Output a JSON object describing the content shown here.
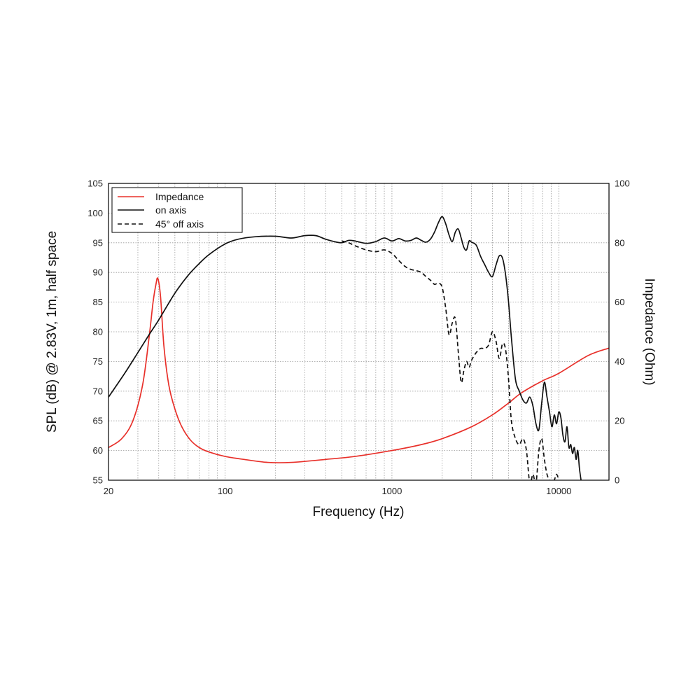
{
  "chart_data": {
    "type": "line",
    "xlabel": "Frequency (Hz)",
    "ylabel_left": "SPL (dB) @ 2.83V, 1m, half space",
    "ylabel_right": "Impedance (Ohm)",
    "x_scale": "log",
    "xlim": [
      20,
      20000
    ],
    "ylim_left": [
      55,
      105
    ],
    "ylim_right": [
      0,
      100
    ],
    "x_tick_labels": [
      "20",
      "100",
      "1000",
      "10000"
    ],
    "x_tick_values": [
      20,
      100,
      1000,
      10000
    ],
    "y_left_ticks": [
      "55",
      "60",
      "65",
      "70",
      "75",
      "80",
      "85",
      "90",
      "95",
      "100",
      "105"
    ],
    "y_right_ticks": [
      "0",
      "20",
      "40",
      "60",
      "80",
      "100"
    ],
    "grid": true,
    "legend_position": "top-left",
    "legend": [
      "Impedance",
      "on axis",
      "45° off axis"
    ],
    "series": [
      {
        "name": "Impedance",
        "axis": "right",
        "color": "#e8302a",
        "dash": "solid",
        "x": [
          20,
          24,
          28,
          32,
          35,
          37,
          38.5,
          39.5,
          41,
          43,
          46,
          50,
          55,
          62,
          70,
          80,
          100,
          130,
          180,
          250,
          400,
          600,
          1000,
          1500,
          2000,
          3000,
          4000,
          5000,
          6000,
          8000,
          10000,
          15000,
          20000
        ],
        "y": [
          11,
          14,
          20,
          32,
          48,
          60,
          66,
          68,
          62,
          45,
          32,
          24,
          18,
          13.5,
          11,
          9.5,
          8,
          7,
          6,
          6,
          7,
          8,
          10,
          12,
          14,
          18,
          22,
          26,
          29.5,
          33.5,
          36,
          42,
          44.5
        ]
      },
      {
        "name": "on axis",
        "axis": "left",
        "color": "#111111",
        "dash": "solid",
        "x": [
          20,
          25,
          30,
          35,
          40,
          50,
          60,
          70,
          80,
          100,
          120,
          150,
          200,
          250,
          300,
          350,
          400,
          450,
          500,
          550,
          600,
          700,
          800,
          900,
          1000,
          1100,
          1200,
          1300,
          1400,
          1500,
          1600,
          1700,
          1800,
          1900,
          2000,
          2100,
          2200,
          2300,
          2400,
          2500,
          2600,
          2700,
          2800,
          2900,
          3000,
          3200,
          3400,
          3600,
          3800,
          4000,
          4200,
          4400,
          4600,
          4800,
          5000,
          5200,
          5500,
          5800,
          6100,
          6400,
          6700,
          7000,
          7300,
          7600,
          7900,
          8200,
          8500,
          8800,
          9100,
          9400,
          9700,
          10000,
          10300,
          10600,
          10900,
          11200,
          11500,
          11800,
          12100,
          12400,
          12700,
          13000,
          13300,
          13600
        ],
        "y": [
          69,
          73,
          76.5,
          79.5,
          82,
          86.5,
          89.5,
          91.5,
          93,
          94.8,
          95.6,
          96,
          96.1,
          95.8,
          96.2,
          96.2,
          95.6,
          95.2,
          95,
          95.4,
          95.3,
          94.9,
          95.2,
          95.8,
          95.3,
          95.7,
          95.3,
          95.4,
          95.8,
          95.4,
          95.1,
          95.6,
          96.8,
          98.4,
          99.4,
          98.2,
          96.3,
          95.2,
          96.8,
          97.3,
          95.8,
          94.2,
          93.8,
          95.3,
          95.1,
          94.6,
          92.7,
          91.3,
          90,
          89.3,
          91.2,
          92.8,
          92.4,
          89.6,
          85,
          79,
          72,
          70,
          68.5,
          68,
          69,
          67.5,
          64.5,
          63.5,
          68,
          71.5,
          69,
          66.5,
          64,
          66,
          64.5,
          66.5,
          65.5,
          62.5,
          61.5,
          64,
          60.5,
          61,
          59.5,
          60.5,
          58.5,
          60,
          57,
          55
        ]
      },
      {
        "name": "45° off axis",
        "axis": "left",
        "color": "#111111",
        "dash": "dashed",
        "x": [
          500,
          550,
          600,
          700,
          800,
          900,
          1000,
          1100,
          1200,
          1300,
          1400,
          1500,
          1600,
          1700,
          1800,
          1900,
          2000,
          2100,
          2200,
          2300,
          2400,
          2500,
          2600,
          2700,
          2800,
          2900,
          3000,
          3200,
          3400,
          3600,
          3800,
          4000,
          4200,
          4400,
          4600,
          4800,
          5000,
          5200,
          5500,
          5800,
          6100,
          6400,
          6700,
          7000,
          7300,
          7600,
          7900,
          8200,
          8500,
          8800,
          9100,
          9400,
          9700,
          10000
        ],
        "y": [
          95.3,
          95,
          94.5,
          93.8,
          93.5,
          93.8,
          93.2,
          92,
          91,
          90.5,
          90.3,
          90,
          89.3,
          88.7,
          88,
          88.2,
          87.5,
          84,
          79.5,
          81.5,
          82.2,
          76.5,
          71.5,
          73.5,
          75,
          74,
          75.2,
          76.5,
          77.2,
          77.2,
          77.8,
          80,
          78.5,
          75.5,
          78,
          77,
          72,
          65,
          62,
          61,
          62,
          60,
          54.5,
          56,
          54.5,
          60,
          62,
          58.5,
          56,
          55,
          54.5,
          55,
          56,
          55
        ]
      }
    ]
  }
}
